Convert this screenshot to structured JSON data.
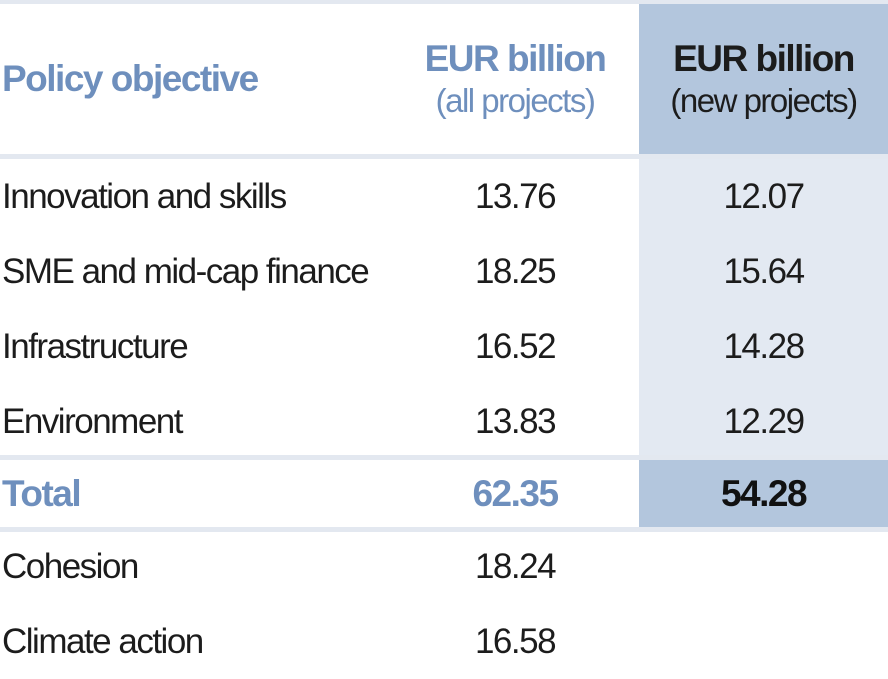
{
  "table": {
    "header": {
      "objective_label": "Policy objective",
      "col_all_title": "EUR billion",
      "col_all_sub": "(all projects)",
      "col_new_title": "EUR billion",
      "col_new_sub": "(new projects)"
    },
    "rows": [
      {
        "objective": "Innovation and skills",
        "all": "13.76",
        "new": "12.07"
      },
      {
        "objective": "SME and mid-cap finance",
        "all": "18.25",
        "new": "15.64"
      },
      {
        "objective": "Infrastructure",
        "all": "16.52",
        "new": "14.28"
      },
      {
        "objective": "Environment",
        "all": "13.83",
        "new": "12.29"
      }
    ],
    "total": {
      "label": "Total",
      "all": "62.35",
      "new": "54.28"
    },
    "extra_rows": [
      {
        "objective": "Cohesion",
        "all": "18.24"
      },
      {
        "objective": "Climate action",
        "all": "16.58"
      }
    ]
  },
  "colors": {
    "accent_blue": "#6e8fbd",
    "header_fill": "#b3c6dd",
    "column_fill": "#e3e9f2",
    "rule": "#e3e8f0",
    "text": "#1c1c1c"
  }
}
